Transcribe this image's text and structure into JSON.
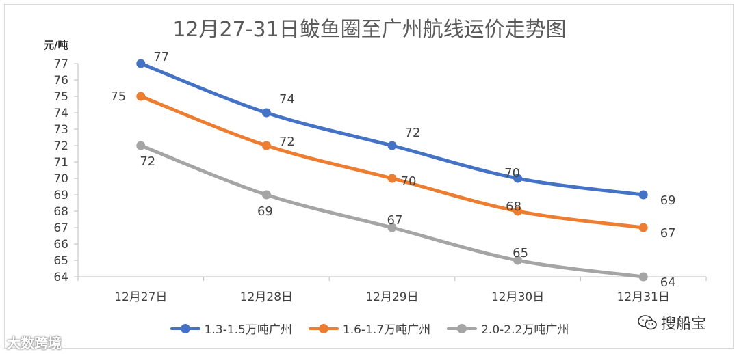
{
  "title": "12月27-31日鲅鱼圈至广州航线运价走势图",
  "chart_data": {
    "type": "line",
    "title": "12月27-31日鲅鱼圈至广州航线运价走势图",
    "ylabel": "元/吨",
    "xlabel": "",
    "ylim": [
      64,
      77
    ],
    "yticks": [
      "77",
      "76",
      "75",
      "74",
      "73",
      "72",
      "71",
      "70",
      "69",
      "68",
      "67",
      "66",
      "65",
      "64"
    ],
    "categories": [
      "12月27日",
      "12月28日",
      "12月29日",
      "12月30日",
      "12月31日"
    ],
    "legend_position": "bottom",
    "series": [
      {
        "name": "1.3-1.5万吨广州",
        "color": "#4472C4",
        "values": [
          77,
          74,
          72,
          70,
          69
        ]
      },
      {
        "name": "1.6-1.7万吨广州",
        "color": "#ED7D31",
        "values": [
          75,
          72,
          70,
          68,
          67
        ]
      },
      {
        "name": "2.0-2.2万吨广州",
        "color": "#A5A5A5",
        "values": [
          72,
          69,
          67,
          65,
          64
        ]
      }
    ]
  },
  "watermarks": {
    "left": "大数跨境",
    "right": "搜船宝",
    "right_icon": "wechat-icon"
  }
}
